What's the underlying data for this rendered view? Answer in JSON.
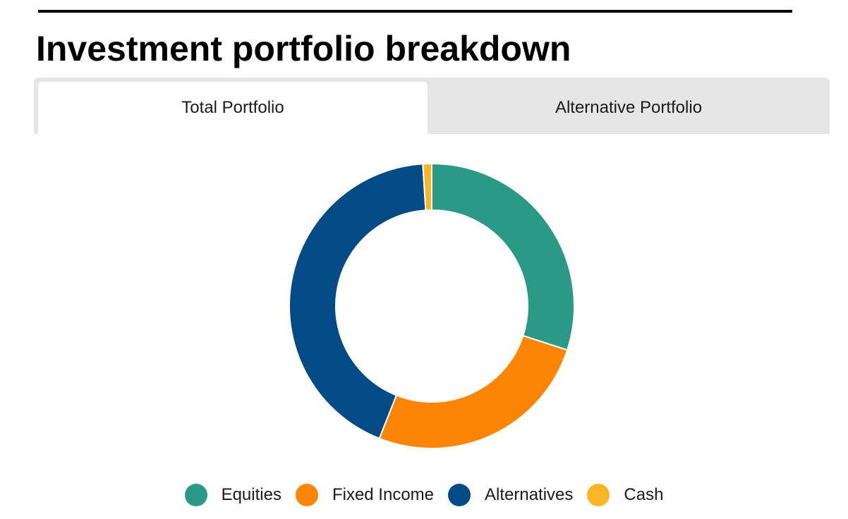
{
  "title": "Investment portfolio breakdown",
  "tabs": [
    {
      "label": "Total Portfolio",
      "active": true
    },
    {
      "label": "Alternative Portfolio",
      "active": false
    }
  ],
  "chart_data": {
    "type": "pie",
    "variant": "donut",
    "categories": [
      "Equities",
      "Fixed Income",
      "Alternatives",
      "Cash"
    ],
    "values": [
      30,
      26,
      43,
      1
    ],
    "unit": "%",
    "colors": [
      "#2a9a87",
      "#fd8505",
      "#024b87",
      "#fbb627"
    ],
    "legend": "bottom",
    "start_angle": "12 o'clock",
    "direction": "clockwise"
  }
}
